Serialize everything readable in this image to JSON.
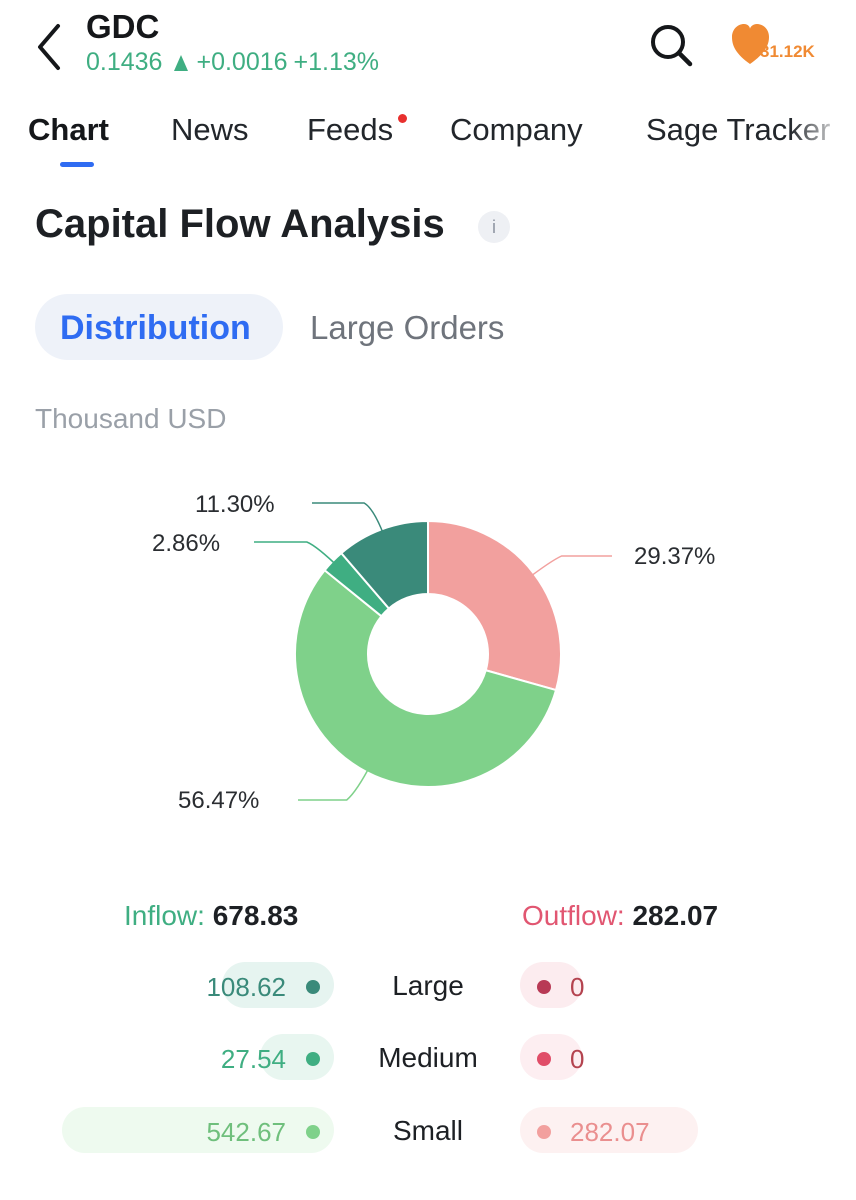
{
  "header": {
    "ticker": "GDC",
    "price": "0.1436",
    "change": "+0.0016",
    "change_pct": "+1.13%",
    "favorites_count": "31.12K",
    "icons": {
      "back": "chevron-left-icon",
      "search": "search-icon",
      "favorite": "heart-icon"
    }
  },
  "tabs": [
    {
      "label": "Chart",
      "active": true
    },
    {
      "label": "News",
      "active": false
    },
    {
      "label": "Feeds",
      "active": false,
      "notification_dot": true
    },
    {
      "label": "Company",
      "active": false
    },
    {
      "label": "Sage Tracker",
      "active": false
    }
  ],
  "section": {
    "title": "Capital Flow Analysis",
    "info_icon_glyph": "i",
    "segments": [
      {
        "label": "Distribution",
        "active": true
      },
      {
        "label": "Large Orders",
        "active": false
      }
    ],
    "unit": "Thousand USD"
  },
  "chart_data": {
    "type": "pie",
    "donut": true,
    "slices": [
      {
        "label": "29.37%",
        "value": 29.37,
        "color": "#f2a09e"
      },
      {
        "label": "56.47%",
        "value": 56.47,
        "color": "#7fd18a"
      },
      {
        "label": "2.86%",
        "value": 2.86,
        "color": "#3fae82"
      },
      {
        "label": "11.30%",
        "value": 11.3,
        "color": "#3a8a7a"
      }
    ]
  },
  "totals": {
    "inflow_label": "Inflow:",
    "inflow_value": "678.83",
    "outflow_label": "Outflow:",
    "outflow_value": "282.07"
  },
  "rows": [
    {
      "category": "Large",
      "inflow": "108.62",
      "outflow": "0",
      "in_color": "#3a8a7a",
      "out_color": "#b83a55",
      "in_bg": "#e6f4f0",
      "out_bg": "#fcecef",
      "in_share": 0.16,
      "out_share": 0
    },
    {
      "category": "Medium",
      "inflow": "27.54",
      "outflow": "0",
      "in_color": "#3fae82",
      "out_color": "#e04d68",
      "in_bg": "#e8f6f0",
      "out_bg": "#fdeef1",
      "in_share": 0.04,
      "out_share": 0
    },
    {
      "category": "Small",
      "inflow": "542.67",
      "outflow": "282.07",
      "in_color": "#7fd18a",
      "out_color": "#f2a09e",
      "in_bg": "#eefaef",
      "out_bg": "#fdf1f1",
      "in_share": 0.8,
      "out_share": 1.0
    }
  ]
}
